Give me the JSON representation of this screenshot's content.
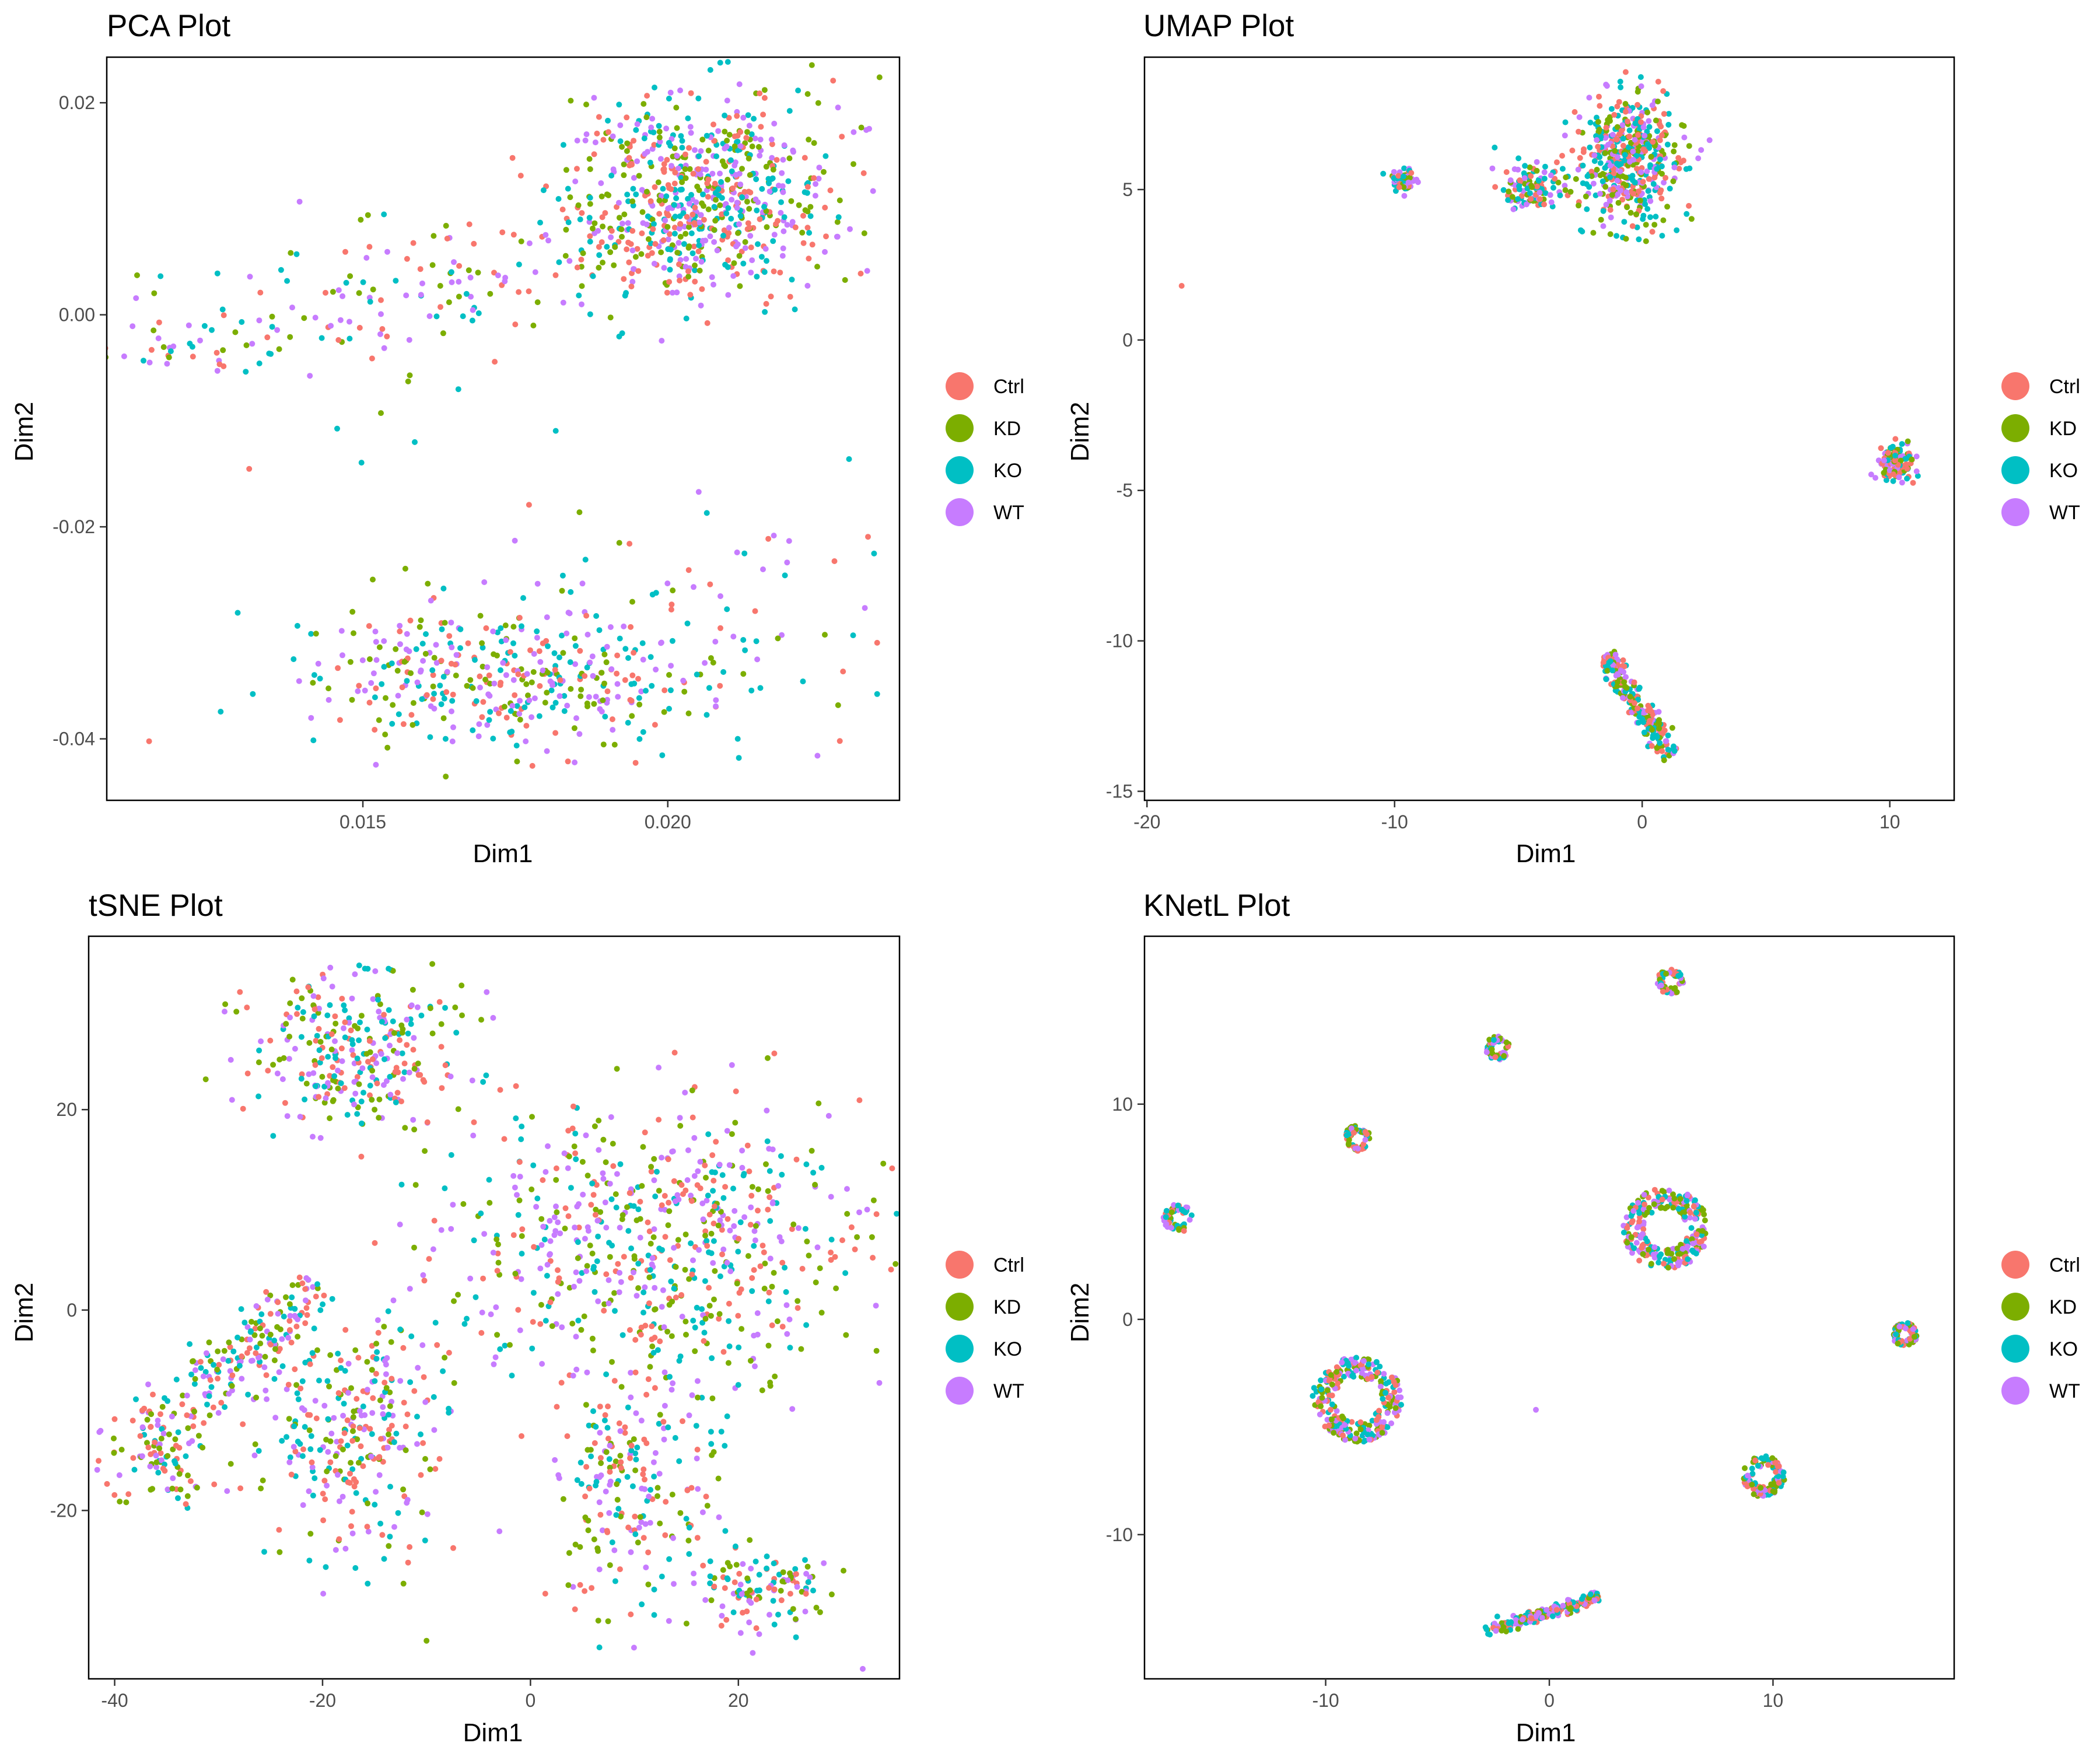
{
  "colors": {
    "Ctrl": "#F8766D",
    "KD": "#7CAE00",
    "KO": "#00BFC4",
    "WT": "#C77CFF"
  },
  "legend": {
    "items": [
      "Ctrl",
      "KD",
      "KO",
      "WT"
    ]
  },
  "chart_data": [
    {
      "type": "scatter",
      "title": "PCA Plot",
      "xlabel": "Dim1",
      "ylabel": "Dim2",
      "xlim": [
        0.0108,
        0.0238
      ],
      "ylim": [
        -0.0458,
        0.0243
      ],
      "xticks": [
        0.015,
        0.02
      ],
      "xtick_labels": [
        "0.015",
        "0.020"
      ],
      "yticks": [
        -0.04,
        -0.02,
        0,
        0.02
      ],
      "ytick_labels": [
        "-0.04",
        "-0.02",
        "0.00",
        "0.02"
      ],
      "grid": false,
      "legend_position": "right",
      "series": [
        {
          "name": "Ctrl"
        },
        {
          "name": "KD"
        },
        {
          "name": "KO"
        },
        {
          "name": "WT"
        }
      ],
      "clusters": [
        {
          "kind": "gauss",
          "cx": 0.0205,
          "cy": 0.0115,
          "sx": 0.0011,
          "sy": 0.0045,
          "n": 700
        },
        {
          "kind": "band",
          "x0": 0.0115,
          "y0": -0.005,
          "x1": 0.0195,
          "y1": 0.008,
          "w": 0.0045,
          "n": 220
        },
        {
          "kind": "gauss",
          "cx": 0.0175,
          "cy": -0.0345,
          "sx": 0.0018,
          "sy": 0.0035,
          "n": 420
        },
        {
          "kind": "gauss",
          "cx": 0.0195,
          "cy": -0.027,
          "sx": 0.0025,
          "sy": 0.0055,
          "n": 60
        },
        {
          "kind": "gauss",
          "cx": 0.016,
          "cy": -0.012,
          "sx": 0.002,
          "sy": 0.003,
          "n": 8
        }
      ]
    },
    {
      "type": "scatter",
      "title": "UMAP Plot",
      "xlabel": "Dim1",
      "ylabel": "Dim2",
      "xlim": [
        -20.1,
        12.6
      ],
      "ylim": [
        -15.3,
        9.4
      ],
      "xticks": [
        -20,
        -10,
        0,
        10
      ],
      "xtick_labels": [
        "-20",
        "-10",
        "0",
        "10"
      ],
      "yticks": [
        -15,
        -10,
        -5,
        0,
        5
      ],
      "ytick_labels": [
        "-15",
        "-10",
        "-5",
        "0",
        "5"
      ],
      "grid": false,
      "legend_position": "right",
      "series": [
        {
          "name": "Ctrl"
        },
        {
          "name": "KD"
        },
        {
          "name": "KO"
        },
        {
          "name": "WT"
        }
      ],
      "clusters": [
        {
          "kind": "gauss",
          "cx": -0.5,
          "cy": 6.0,
          "sx": 1.0,
          "sy": 1.1,
          "n": 500
        },
        {
          "kind": "gauss",
          "cx": -4.5,
          "cy": 5.1,
          "sx": 0.7,
          "sy": 0.4,
          "n": 120
        },
        {
          "kind": "gauss",
          "cx": -9.7,
          "cy": 5.3,
          "sx": 0.3,
          "sy": 0.2,
          "n": 50
        },
        {
          "kind": "gauss",
          "cx": 10.3,
          "cy": -4.1,
          "sx": 0.35,
          "sy": 0.3,
          "n": 120
        },
        {
          "kind": "band",
          "x0": -1.5,
          "y0": -10.5,
          "x1": 1.2,
          "y1": -13.8,
          "w": 0.45,
          "n": 220
        },
        {
          "kind": "point",
          "x": -18.6,
          "y": 1.8
        }
      ]
    },
    {
      "type": "scatter",
      "title": "tSNE Plot",
      "xlabel": "Dim1",
      "ylabel": "Dim2",
      "xlim": [
        -42.5,
        35.5
      ],
      "ylim": [
        -36.8,
        37.3
      ],
      "xticks": [
        -40,
        -20,
        0,
        20
      ],
      "xtick_labels": [
        "-40",
        "-20",
        "0",
        "20"
      ],
      "yticks": [
        -20,
        0,
        20
      ],
      "ytick_labels": [
        "-20",
        "0",
        "20"
      ],
      "grid": false,
      "legend_position": "right",
      "series": [
        {
          "name": "Ctrl"
        },
        {
          "name": "KD"
        },
        {
          "name": "KO"
        },
        {
          "name": "WT"
        }
      ],
      "clusters": [
        {
          "kind": "gauss",
          "cx": -17,
          "cy": 26,
          "sx": 5,
          "sy": 4,
          "n": 300
        },
        {
          "kind": "gauss",
          "cx": 12,
          "cy": 7,
          "sx": 11,
          "sy": 7,
          "n": 650
        },
        {
          "kind": "gauss",
          "cx": 10,
          "cy": -17,
          "sx": 4,
          "sy": 6,
          "n": 220
        },
        {
          "kind": "gauss",
          "cx": 22,
          "cy": -28,
          "sx": 3.5,
          "sy": 2,
          "n": 120
        },
        {
          "kind": "gauss",
          "cx": -35,
          "cy": -13,
          "sx": 3,
          "sy": 3,
          "n": 130
        },
        {
          "kind": "band",
          "x0": -32,
          "y0": -8,
          "x1": -20,
          "y1": 2,
          "w": 3,
          "n": 150
        },
        {
          "kind": "gauss",
          "cx": -17,
          "cy": -12,
          "sx": 4,
          "sy": 6,
          "n": 300
        },
        {
          "kind": "point",
          "x": -10,
          "y": -33
        }
      ]
    },
    {
      "type": "scatter",
      "title": "KNetL Plot",
      "xlabel": "Dim1",
      "ylabel": "Dim2",
      "xlim": [
        -18.1,
        18.1
      ],
      "ylim": [
        -16.7,
        17.8
      ],
      "xticks": [
        -10,
        0,
        10
      ],
      "xtick_labels": [
        "-10",
        "0",
        "10"
      ],
      "yticks": [
        -10,
        0,
        10
      ],
      "ytick_labels": [
        "-10",
        "0",
        "10"
      ],
      "grid": false,
      "legend_position": "right",
      "series": [
        {
          "name": "Ctrl"
        },
        {
          "name": "KD"
        },
        {
          "name": "KO"
        },
        {
          "name": "WT"
        }
      ],
      "clusters": [
        {
          "kind": "ring",
          "cx": 5.4,
          "cy": 15.7,
          "r": 0.6,
          "n": 60
        },
        {
          "kind": "ring",
          "cx": -2.3,
          "cy": 12.6,
          "r": 0.55,
          "n": 55
        },
        {
          "kind": "ring",
          "cx": -8.6,
          "cy": 8.4,
          "r": 0.6,
          "n": 60
        },
        {
          "kind": "ring",
          "cx": -16.6,
          "cy": 4.7,
          "r": 0.65,
          "n": 60
        },
        {
          "kind": "ring",
          "cx": 5.2,
          "cy": 4.2,
          "r": 1.9,
          "n": 260
        },
        {
          "kind": "ring",
          "cx": -8.6,
          "cy": -3.7,
          "r": 2.0,
          "n": 280
        },
        {
          "kind": "ring",
          "cx": 15.9,
          "cy": -0.7,
          "r": 0.55,
          "n": 90
        },
        {
          "kind": "ring",
          "cx": 9.6,
          "cy": -7.3,
          "r": 0.95,
          "n": 120
        },
        {
          "kind": "band",
          "x0": -2.8,
          "y0": -14.5,
          "x1": 2.2,
          "y1": -12.9,
          "w": 0.3,
          "n": 200
        },
        {
          "kind": "point",
          "x": -0.6,
          "y": -4.2
        }
      ]
    }
  ]
}
